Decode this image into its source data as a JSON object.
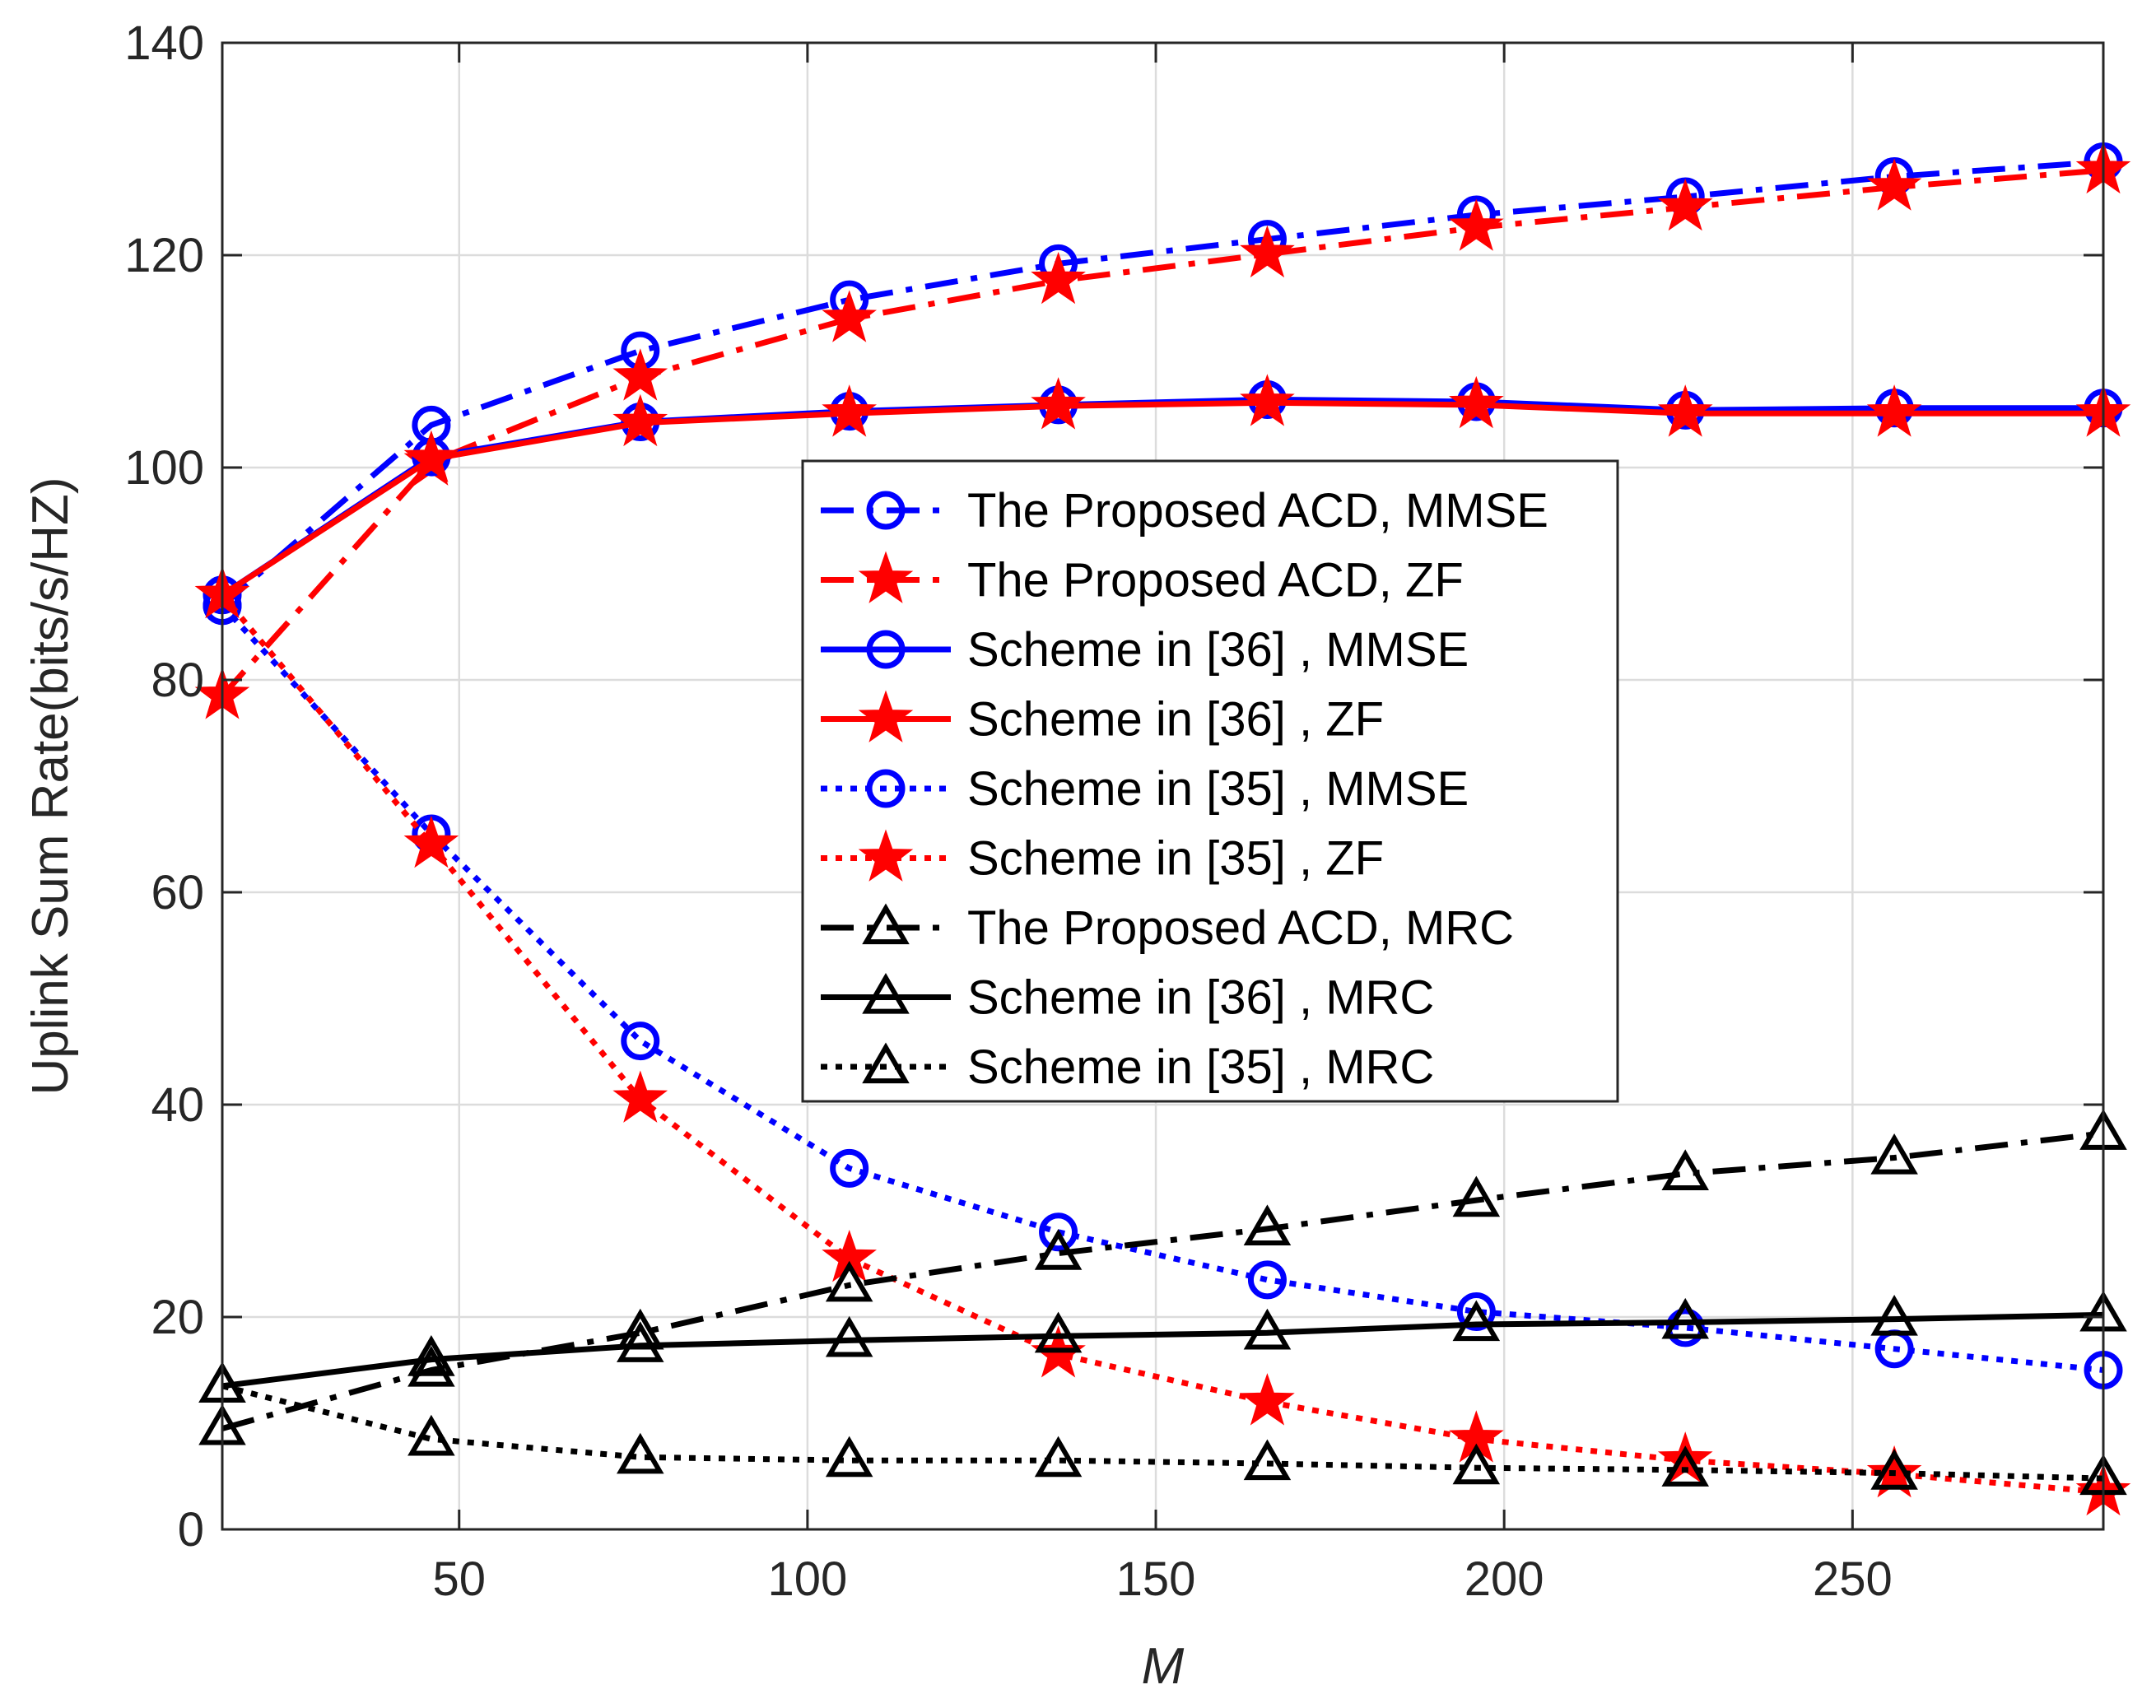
{
  "chart_data": {
    "type": "line",
    "title": "",
    "xlabel": "M",
    "ylabel": "Uplink Sum Rate(bits/s/HZ)",
    "xlim": [
      16,
      286
    ],
    "ylim": [
      0,
      140
    ],
    "xticks": [
      50,
      100,
      150,
      200,
      250
    ],
    "yticks": [
      0,
      20,
      40,
      60,
      80,
      100,
      120,
      140
    ],
    "grid": true,
    "legend_position": "center",
    "x": [
      16,
      46,
      76,
      106,
      136,
      166,
      196,
      226,
      256,
      286
    ],
    "series": [
      {
        "name": "The Proposed ACD, MMSE",
        "color": "#0000ff",
        "dash": "dashdot",
        "marker": "circle",
        "values": [
          87,
          104,
          111,
          115.8,
          119.2,
          121.5,
          123.8,
          125.5,
          127.4,
          128.8
        ]
      },
      {
        "name": "The Proposed ACD, ZF",
        "color": "#ff0000",
        "dash": "dashdot",
        "marker": "star",
        "values": [
          78.5,
          100.5,
          108.5,
          114,
          117.6,
          120.1,
          122.6,
          124.5,
          126.4,
          128
        ]
      },
      {
        "name": "Scheme in [36] , MMSE",
        "color": "#0000ff",
        "dash": "solid",
        "marker": "circle",
        "values": [
          88,
          101,
          104.3,
          105.3,
          105.9,
          106.4,
          106.2,
          105.4,
          105.6,
          105.6
        ]
      },
      {
        "name": "Scheme in [36] , ZF",
        "color": "#ff0000",
        "dash": "solid",
        "marker": "star",
        "values": [
          88,
          100.8,
          104.2,
          105.1,
          105.8,
          106.1,
          105.9,
          105.1,
          105.1,
          105.1
        ]
      },
      {
        "name": "Scheme in [35] , MMSE",
        "color": "#0000ff",
        "dash": "dotted",
        "marker": "circle",
        "values": [
          87,
          65.5,
          46,
          34,
          28,
          23.5,
          20.5,
          19,
          17,
          15
        ]
      },
      {
        "name": "Scheme in [35] , ZF",
        "color": "#ff0000",
        "dash": "dotted",
        "marker": "star",
        "values": [
          88,
          64.5,
          40.5,
          25.5,
          16.5,
          12,
          8.5,
          6.5,
          5.2,
          3.5
        ]
      },
      {
        "name": "The Proposed ACD, MRC",
        "color": "#000000",
        "dash": "dashdot",
        "marker": "triangle",
        "values": [
          9.5,
          15,
          18.5,
          23,
          26,
          28.3,
          31,
          33.5,
          35,
          37.3
        ]
      },
      {
        "name": "Scheme in [36] , MRC",
        "color": "#000000",
        "dash": "solid",
        "marker": "triangle",
        "values": [
          13.5,
          16,
          17.3,
          17.8,
          18.2,
          18.5,
          19.3,
          19.5,
          19.8,
          20.2
        ]
      },
      {
        "name": "Scheme in [35] , MRC",
        "color": "#000000",
        "dash": "dotted",
        "marker": "triangle",
        "values": [
          13.5,
          8.5,
          6.8,
          6.5,
          6.5,
          6.2,
          5.8,
          5.6,
          5.3,
          4.8
        ]
      }
    ]
  }
}
